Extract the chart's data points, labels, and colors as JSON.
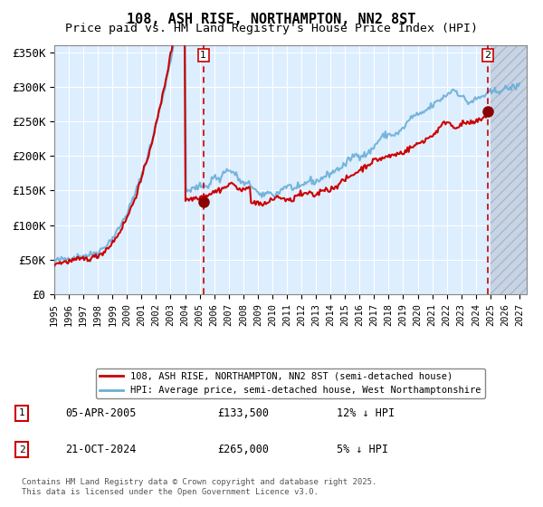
{
  "title": "108, ASH RISE, NORTHAMPTON, NN2 8ST",
  "subtitle": "Price paid vs. HM Land Registry's House Price Index (HPI)",
  "ylim": [
    0,
    360000
  ],
  "xlim_start": 1995.0,
  "xlim_end": 2027.5,
  "yticks": [
    0,
    50000,
    100000,
    150000,
    200000,
    250000,
    300000,
    350000
  ],
  "ytick_labels": [
    "£0",
    "£50K",
    "£100K",
    "£150K",
    "£200K",
    "£250K",
    "£300K",
    "£350K"
  ],
  "xtick_years": [
    1995,
    1996,
    1997,
    1998,
    1999,
    2000,
    2001,
    2002,
    2003,
    2004,
    2005,
    2006,
    2007,
    2008,
    2009,
    2010,
    2011,
    2012,
    2013,
    2014,
    2015,
    2016,
    2017,
    2018,
    2019,
    2020,
    2021,
    2022,
    2023,
    2024,
    2025,
    2026,
    2027
  ],
  "hpi_color": "#6baed6",
  "price_color": "#cc0000",
  "dot_color": "#8b0000",
  "vline_color": "#cc0000",
  "bg_color": "#ddeeff",
  "grid_color": "#ffffff",
  "hatch_fill_color": "#c8d4e4",
  "hatch_edge_color": "#a8b8cc",
  "marker1_year": 2005.26,
  "marker1_price": 133500,
  "marker2_year": 2024.81,
  "marker2_price": 265000,
  "legend1": "108, ASH RISE, NORTHAMPTON, NN2 8ST (semi-detached house)",
  "legend2": "HPI: Average price, semi-detached house, West Northamptonshire",
  "annotation1_label": "1",
  "annotation1_date": "05-APR-2005",
  "annotation1_price": "£133,500",
  "annotation1_hpi": "12% ↓ HPI",
  "annotation2_label": "2",
  "annotation2_date": "21-OCT-2024",
  "annotation2_price": "£265,000",
  "annotation2_hpi": "5% ↓ HPI",
  "footer": "Contains HM Land Registry data © Crown copyright and database right 2025.\nThis data is licensed under the Open Government Licence v3.0."
}
